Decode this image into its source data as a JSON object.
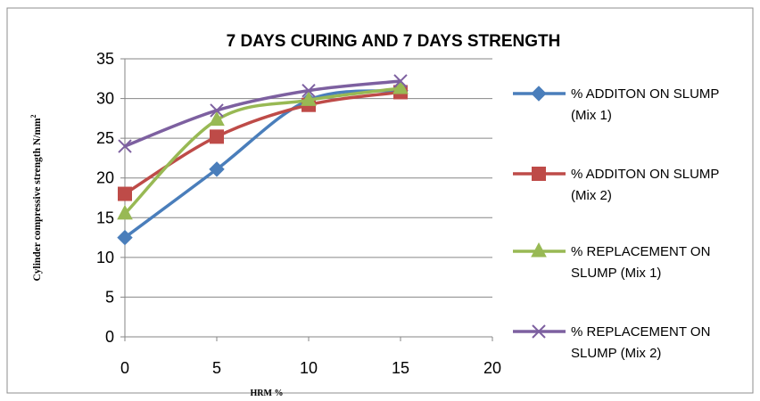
{
  "chart_data": {
    "type": "line",
    "title": "7 DAYS CURING AND 7 DAYS STRENGTH",
    "xlabel": "HRM %",
    "ylabel": "Cylinder compressive strength N/mm",
    "ylabel_sup": "2",
    "xlim": [
      0,
      20
    ],
    "ylim": [
      0,
      35
    ],
    "xticks": [
      0,
      5,
      10,
      15,
      20
    ],
    "yticks": [
      0,
      5,
      10,
      15,
      20,
      25,
      30,
      35
    ],
    "grid": "horizontal",
    "legend": "right",
    "smooth": true,
    "x": [
      0,
      5,
      10,
      15
    ],
    "series": [
      {
        "name_lines": [
          "% ADDITON ON SLUMP",
          "(Mix 1)"
        ],
        "values": [
          12.5,
          21.1,
          29.8,
          31.0
        ],
        "color": "#4a7ebb",
        "marker": "diamond"
      },
      {
        "name_lines": [
          "% ADDITON ON SLUMP",
          "(Mix 2)"
        ],
        "values": [
          18.0,
          25.2,
          29.2,
          30.8
        ],
        "color": "#be4b48",
        "marker": "square"
      },
      {
        "name_lines": [
          "% REPLACEMENT ON",
          "SLUMP (Mix 1)"
        ],
        "values": [
          15.5,
          27.3,
          29.8,
          31.3
        ],
        "color": "#98b954",
        "marker": "triangle"
      },
      {
        "name_lines": [
          "% REPLACEMENT ON",
          "SLUMP (Mix 2)"
        ],
        "values": [
          24.0,
          28.5,
          31.0,
          32.2
        ],
        "color": "#7d60a0",
        "marker": "x"
      }
    ]
  }
}
